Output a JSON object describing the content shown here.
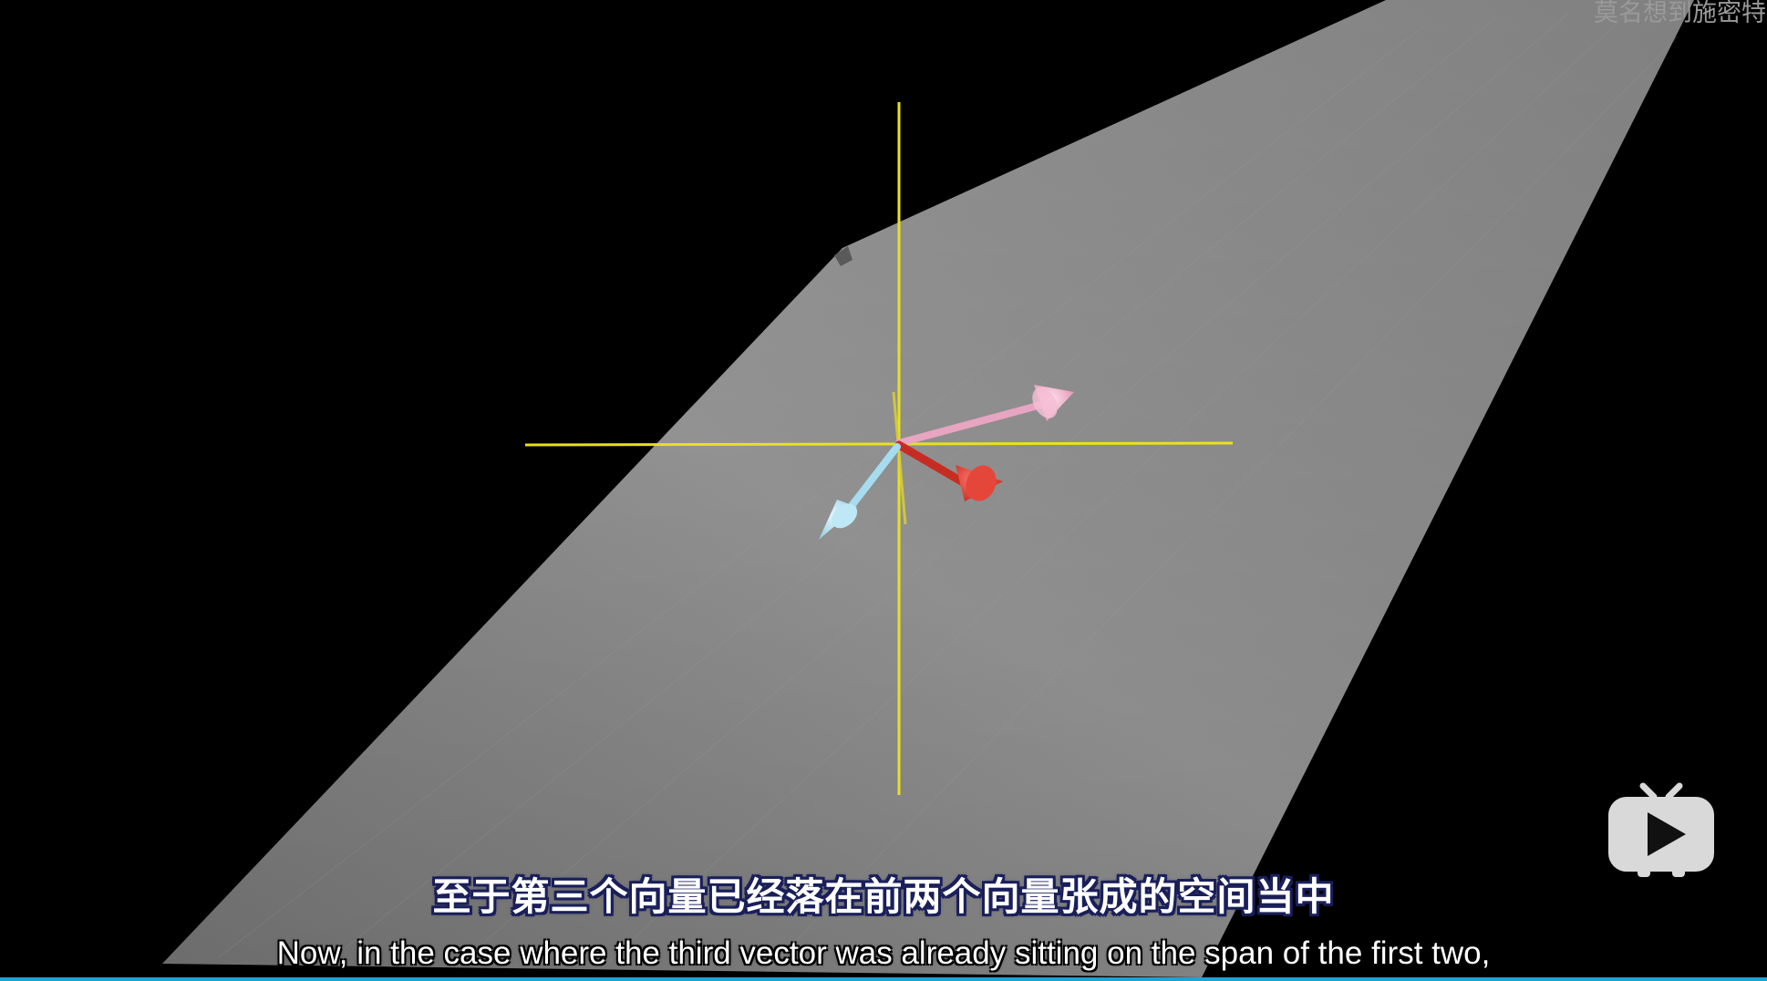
{
  "video": {
    "watermark": "莫名想到施密特",
    "subtitle_zh": "至于第三个向量已经落在前两个向量张成的空间当中",
    "subtitle_en": "Now, in the case where the third vector was already sitting on the span of the first two,"
  },
  "scene": {
    "plane_color": "#8c8c8c",
    "axis_color": "#e8e020",
    "vectors": [
      {
        "name": "pink-vector",
        "color": "#f2a6c6"
      },
      {
        "name": "red-vector",
        "color": "#e03a2e"
      },
      {
        "name": "light-blue-vector",
        "color": "#a8def0"
      }
    ]
  },
  "player": {
    "logo_icon": "bilibili-tv-play-icon",
    "progress_color": "#1fa3d6"
  }
}
